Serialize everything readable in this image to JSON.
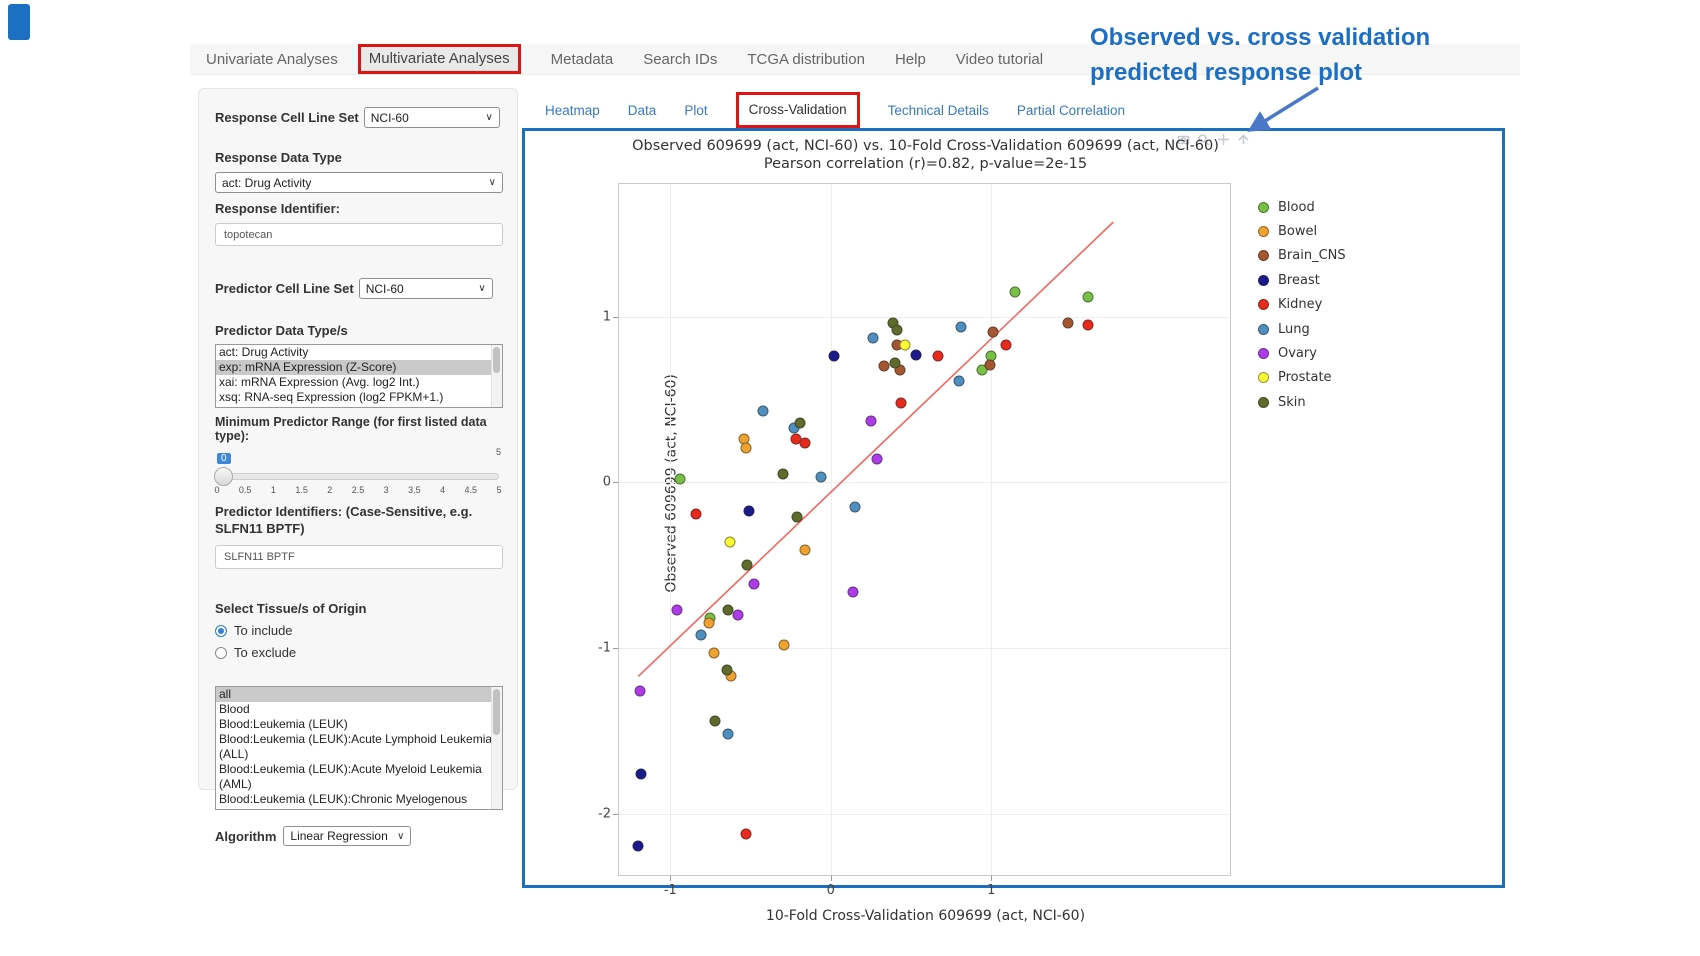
{
  "nav": {
    "items": [
      {
        "label": "Univariate Analyses",
        "active": false
      },
      {
        "label": "Multivariate Analyses",
        "active": true
      },
      {
        "label": "Metadata",
        "active": false
      },
      {
        "label": "Search IDs",
        "active": false
      },
      {
        "label": "TCGA distribution",
        "active": false
      },
      {
        "label": "Help",
        "active": false
      },
      {
        "label": "Video tutorial",
        "active": false
      }
    ]
  },
  "subtabs": {
    "items": [
      {
        "label": "Heatmap",
        "active": false
      },
      {
        "label": "Data",
        "active": false
      },
      {
        "label": "Plot",
        "active": false
      },
      {
        "label": "Cross-Validation",
        "active": true
      },
      {
        "label": "Technical Details",
        "active": false
      },
      {
        "label": "Partial Correlation",
        "active": false
      }
    ]
  },
  "sidebar": {
    "response_cell_line_set": {
      "label": "Response Cell Line Set",
      "value": "NCI-60"
    },
    "response_data_type": {
      "label": "Response Data Type",
      "value": "act: Drug Activity"
    },
    "response_identifier": {
      "label": "Response Identifier:",
      "value": "topotecan"
    },
    "predictor_cell_line_set": {
      "label": "Predictor Cell Line Set",
      "value": "NCI-60"
    },
    "predictor_data_types": {
      "label": "Predictor Data Type/s",
      "options": [
        "act: Drug Activity",
        "exp: mRNA Expression (Z-Score)",
        "xai: mRNA Expression (Avg. log2 Int.)",
        "xsq: RNA-seq Expression (log2 FPKM+1.)"
      ],
      "selected_index": 1
    },
    "min_predictor_range": {
      "label": "Minimum Predictor Range (for first listed data type):",
      "value": "0",
      "max_label": "5",
      "ticks": [
        "0",
        "0.5",
        "1",
        "1.5",
        "2",
        "2.5",
        "3",
        "3.5",
        "4",
        "4.5",
        "5"
      ]
    },
    "predictor_identifiers": {
      "label": "Predictor Identifiers: (Case-Sensitive, e.g. SLFN11 BPTF)",
      "value": "SLFN11 BPTF"
    },
    "tissue_origin": {
      "label": "Select Tissue/s of Origin",
      "radios": [
        {
          "label": "To include",
          "checked": true
        },
        {
          "label": "To exclude",
          "checked": false
        }
      ],
      "options": [
        "all",
        "Blood",
        "Blood:Leukemia (LEUK)",
        "Blood:Leukemia (LEUK):Acute Lymphoid Leukemia (ALL)",
        "Blood:Leukemia (LEUK):Acute Myeloid Leukemia (AML)",
        "Blood:Leukemia (LEUK):Chronic Myelogenous Leukemia (CML)"
      ],
      "selected_index": 0
    },
    "algorithm": {
      "label": "Algorithm",
      "value": "Linear Regression"
    }
  },
  "annotation": {
    "line1": "Observed vs. cross validation",
    "line2": "predicted response plot",
    "color": "#1c6fc4"
  },
  "chart_data": {
    "type": "scatter",
    "title": "Observed 609699 (act, NCI-60) vs. 10-Fold Cross-Validation 609699 (act, NCI-60)",
    "subtitle": "Pearson correlation (r)=0.82, p-value=2e-15",
    "xlabel": "10-Fold Cross-Validation 609699 (act, NCI-60)",
    "ylabel": "Observed 609699 (act, NCI-60)",
    "xlim": [
      -1.32,
      2.5
    ],
    "ylim": [
      -2.38,
      1.8
    ],
    "x_ticks": [
      -1,
      0,
      1
    ],
    "y_ticks": [
      1,
      0,
      -1,
      -2
    ],
    "grid": true,
    "legend_position": "right",
    "trend_line": {
      "x1": -1.2,
      "y1": -1.17,
      "x2": 1.76,
      "y2": 1.57,
      "color": "#f4665f"
    },
    "series": [
      {
        "name": "Blood",
        "color": "#77C043",
        "points": [
          [
            -0.94,
            0.02
          ],
          [
            1.15,
            1.15
          ],
          [
            1.6,
            1.12
          ],
          [
            1.0,
            0.76
          ],
          [
            0.94,
            0.68
          ],
          [
            -0.75,
            -0.82
          ]
        ]
      },
      {
        "name": "Bowel",
        "color": "#F0A22E",
        "points": [
          [
            -0.54,
            0.26
          ],
          [
            -0.53,
            0.21
          ],
          [
            -0.16,
            -0.41
          ],
          [
            -0.29,
            -0.98
          ],
          [
            -0.73,
            -1.03
          ],
          [
            -0.62,
            -1.17
          ],
          [
            -0.76,
            -0.85
          ]
        ]
      },
      {
        "name": "Brain_CNS",
        "color": "#A5562F",
        "points": [
          [
            1.48,
            0.96
          ],
          [
            1.01,
            0.91
          ],
          [
            0.41,
            0.83
          ],
          [
            0.33,
            0.7
          ],
          [
            0.43,
            0.68
          ],
          [
            0.99,
            0.71
          ]
        ]
      },
      {
        "name": "Breast",
        "color": "#1A1A8A",
        "points": [
          [
            0.02,
            0.76
          ],
          [
            0.53,
            0.77
          ],
          [
            -0.51,
            -0.17
          ],
          [
            -1.18,
            -1.76
          ],
          [
            -1.2,
            -2.19
          ]
        ]
      },
      {
        "name": "Kidney",
        "color": "#E8291C",
        "points": [
          [
            1.6,
            0.95
          ],
          [
            1.09,
            0.83
          ],
          [
            0.67,
            0.76
          ],
          [
            0.44,
            0.48
          ],
          [
            -0.22,
            0.26
          ],
          [
            -0.16,
            0.24
          ],
          [
            -0.84,
            -0.19
          ],
          [
            -0.53,
            -2.12
          ]
        ]
      },
      {
        "name": "Lung",
        "color": "#4E8FC0",
        "points": [
          [
            0.81,
            0.94
          ],
          [
            0.26,
            0.87
          ],
          [
            0.8,
            0.61
          ],
          [
            -0.42,
            0.43
          ],
          [
            -0.23,
            0.33
          ],
          [
            -0.06,
            0.03
          ],
          [
            0.15,
            -0.15
          ],
          [
            -0.81,
            -0.92
          ],
          [
            -0.64,
            -1.52
          ]
        ]
      },
      {
        "name": "Ovary",
        "color": "#AE3BE8",
        "points": [
          [
            0.25,
            0.37
          ],
          [
            0.29,
            0.14
          ],
          [
            -0.48,
            -0.61
          ],
          [
            0.14,
            -0.66
          ],
          [
            -0.96,
            -0.77
          ],
          [
            -0.58,
            -0.8
          ],
          [
            -1.19,
            -1.26
          ]
        ]
      },
      {
        "name": "Prostate",
        "color": "#FCFC34",
        "points": [
          [
            0.46,
            0.83
          ],
          [
            -0.63,
            -0.36
          ]
        ]
      },
      {
        "name": "Skin",
        "color": "#5E6B2A",
        "points": [
          [
            0.39,
            0.96
          ],
          [
            0.41,
            0.92
          ],
          [
            0.4,
            0.72
          ],
          [
            -0.19,
            0.36
          ],
          [
            -0.3,
            0.05
          ],
          [
            -0.21,
            -0.21
          ],
          [
            -0.52,
            -0.5
          ],
          [
            -0.64,
            -0.77
          ],
          [
            -0.65,
            -1.13
          ],
          [
            -0.72,
            -1.44
          ]
        ]
      }
    ]
  },
  "modebar": {
    "icons": [
      "camera-icon",
      "zoom-icon",
      "pan-icon",
      "reset-axes-icon"
    ]
  }
}
